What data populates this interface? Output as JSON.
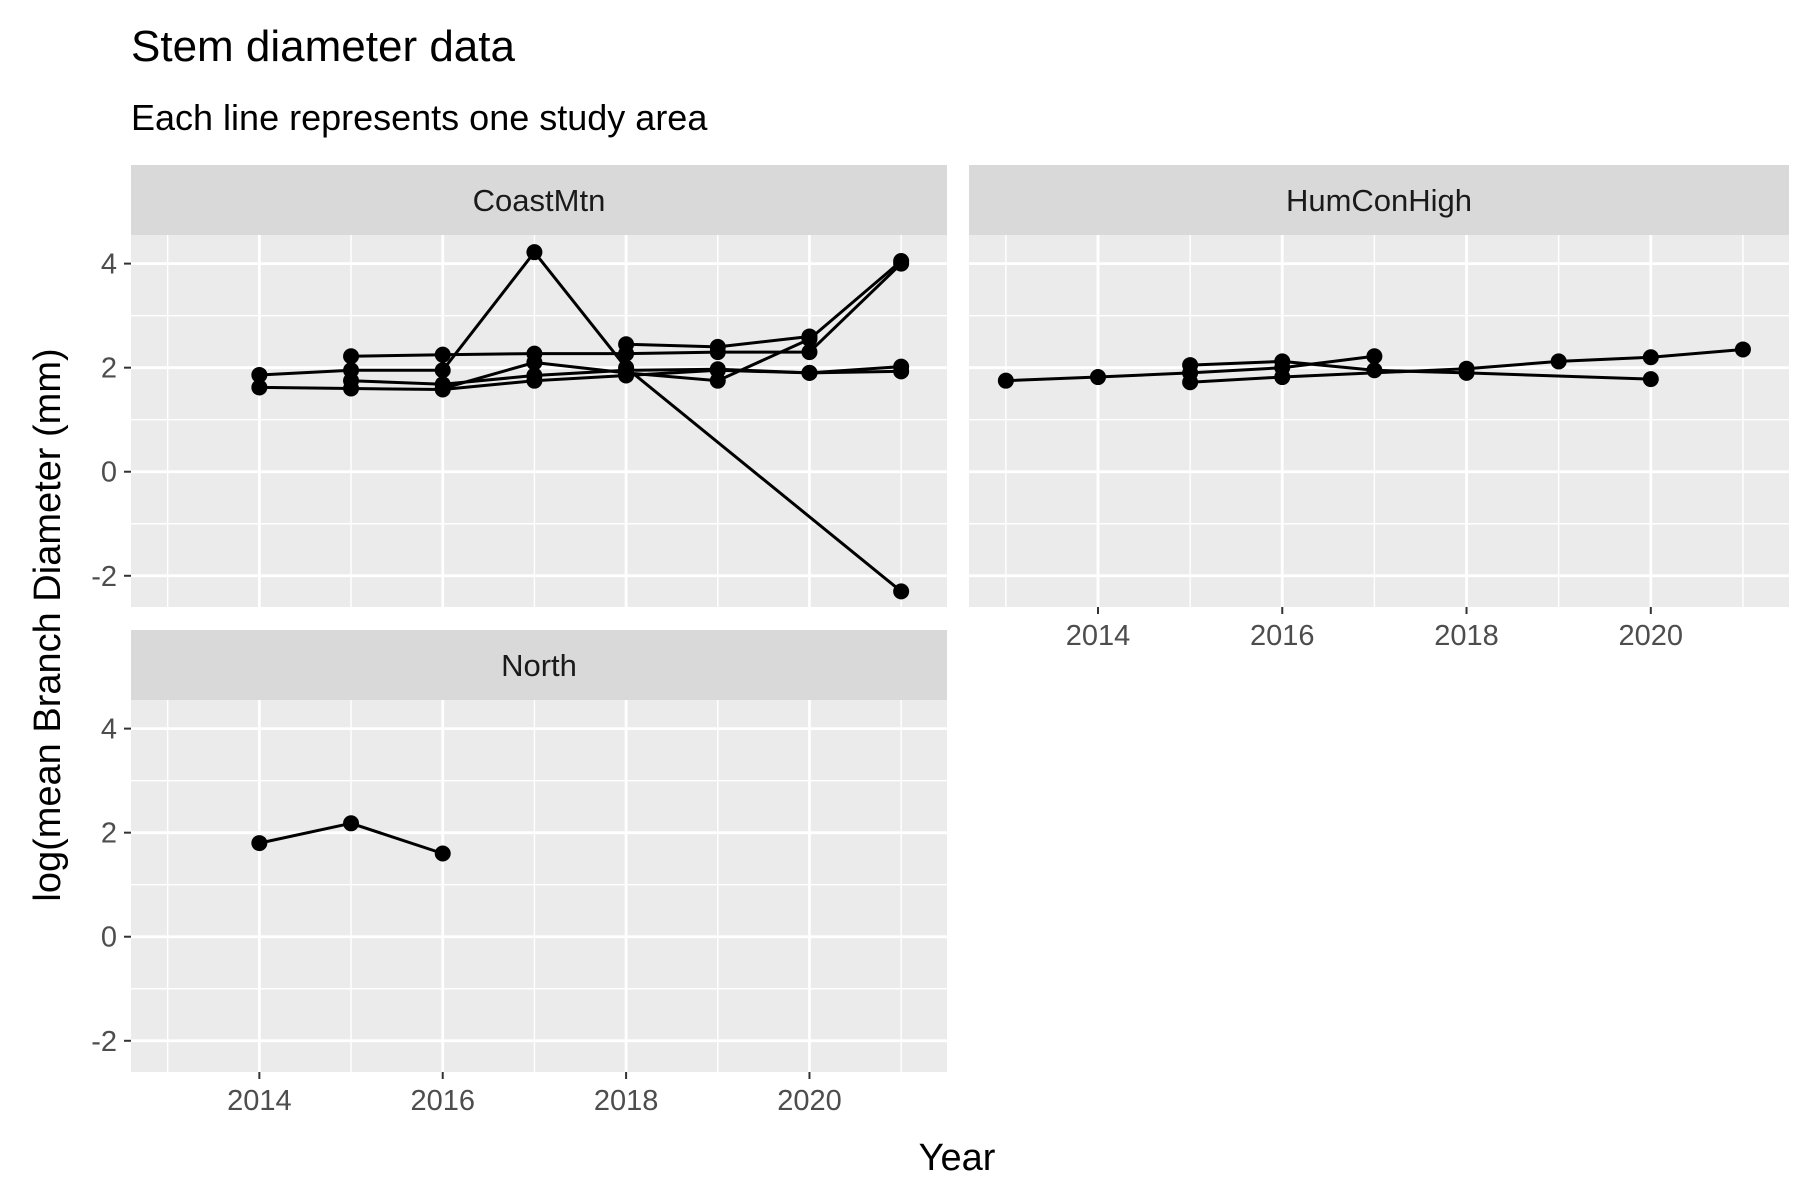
{
  "chart_data": {
    "type": "line",
    "title": "Stem diameter data",
    "subtitle": "Each line represents one study area",
    "xlabel": "Year",
    "ylabel": "log(mean Branch Diameter (mm)",
    "xlim": [
      2012.6,
      2021.5
    ],
    "ylim": [
      -2.6,
      4.55
    ],
    "x_ticks": [
      2014,
      2016,
      2018,
      2020
    ],
    "y_ticks": [
      -2,
      0,
      2,
      4
    ],
    "grid": true,
    "legend": "none",
    "panels": [
      {
        "name": "CoastMtn",
        "series": [
          {
            "x": [
              2014,
              2015,
              2016,
              2017,
              2018,
              2019,
              2020,
              2021
            ],
            "y": [
              1.62,
              1.6,
              1.58,
              1.75,
              1.85,
              1.95,
              1.9,
              1.93
            ]
          },
          {
            "x": [
              2014,
              2015,
              2016,
              2017,
              2018,
              2021
            ],
            "y": [
              1.86,
              1.95,
              1.95,
              4.22,
              2.0,
              -2.3
            ]
          },
          {
            "x": [
              2015,
              2016,
              2017,
              2018,
              2019,
              2020,
              2021
            ],
            "y": [
              2.22,
              2.25,
              2.27,
              2.27,
              2.3,
              2.3,
              4.0
            ]
          },
          {
            "x": [
              2015,
              2016,
              2017,
              2018,
              2019,
              2020,
              2021
            ],
            "y": [
              1.75,
              1.68,
              1.85,
              1.95,
              1.97,
              1.9,
              2.02
            ]
          },
          {
            "x": [
              2016,
              2017,
              2018,
              2019,
              2020,
              2021
            ],
            "y": [
              1.6,
              2.1,
              1.9,
              1.75,
              2.55,
              4.05
            ]
          },
          {
            "x": [
              2018,
              2019,
              2020
            ],
            "y": [
              2.45,
              2.4,
              2.6
            ]
          }
        ]
      },
      {
        "name": "HumConHigh",
        "series": [
          {
            "x": [
              2013,
              2014,
              2015,
              2016,
              2017
            ],
            "y": [
              1.75,
              1.82,
              1.9,
              2.0,
              2.22
            ]
          },
          {
            "x": [
              2015,
              2016,
              2017,
              2018,
              2020
            ],
            "y": [
              2.05,
              2.12,
              1.95,
              1.9,
              1.78
            ]
          },
          {
            "x": [
              2015,
              2016,
              2018,
              2019,
              2020,
              2021
            ],
            "y": [
              1.72,
              1.82,
              1.98,
              2.12,
              2.2,
              2.35
            ]
          }
        ]
      },
      {
        "name": "North",
        "series": [
          {
            "x": [
              2014,
              2015,
              2016
            ],
            "y": [
              1.8,
              2.18,
              1.6
            ]
          }
        ]
      }
    ]
  }
}
